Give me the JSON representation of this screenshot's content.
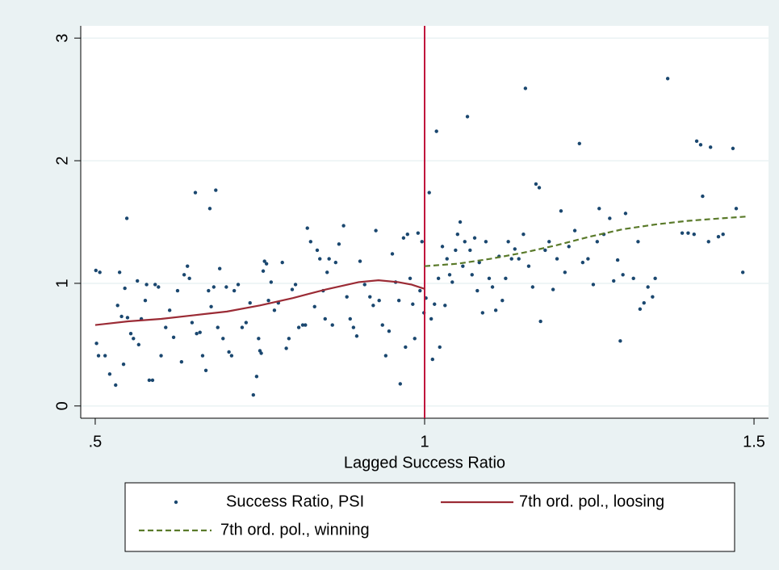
{
  "chart_data": {
    "type": "scatter",
    "xlabel": "Lagged Success Ratio",
    "xlim": [
      0.478,
      1.522
    ],
    "ylim": [
      -0.1,
      3.1
    ],
    "xticks": [
      {
        "value": 0.5,
        "label": ".5"
      },
      1,
      1.5
    ],
    "yticks": [
      0,
      1,
      2,
      3
    ],
    "grid": true,
    "legend": "bottom",
    "xline": {
      "value": 1,
      "color": "#c0143c"
    },
    "series": [
      {
        "name": "Success Ratio, PSI",
        "type": "scatter",
        "color": "#1a476f",
        "x": [
          0.501,
          0.507,
          0.502,
          0.505,
          0.515,
          0.522,
          0.531,
          0.534,
          0.537,
          0.54,
          0.543,
          0.548,
          0.545,
          0.549,
          0.554,
          0.558,
          0.564,
          0.566,
          0.57,
          0.576,
          0.578,
          0.582,
          0.587,
          0.591,
          0.596,
          0.6,
          0.607,
          0.613,
          0.619,
          0.625,
          0.631,
          0.635,
          0.64,
          0.643,
          0.647,
          0.652,
          0.654,
          0.659,
          0.663,
          0.668,
          0.672,
          0.674,
          0.676,
          0.68,
          0.683,
          0.686,
          0.689,
          0.694,
          0.699,
          0.703,
          0.707,
          0.711,
          0.717,
          0.723,
          0.729,
          0.735,
          0.74,
          0.745,
          0.748,
          0.75,
          0.752,
          0.755,
          0.757,
          0.76,
          0.763,
          0.767,
          0.772,
          0.778,
          0.784,
          0.79,
          0.794,
          0.799,
          0.804,
          0.809,
          0.815,
          0.819,
          0.822,
          0.827,
          0.833,
          0.837,
          0.841,
          0.846,
          0.849,
          0.852,
          0.855,
          0.86,
          0.865,
          0.87,
          0.877,
          0.882,
          0.887,
          0.892,
          0.897,
          0.902,
          0.909,
          0.917,
          0.922,
          0.926,
          0.931,
          0.936,
          0.941,
          0.946,
          0.951,
          0.956,
          0.961,
          0.963,
          0.968,
          0.971,
          0.974,
          0.978,
          0.982,
          0.985,
          0.99,
          0.993,
          0.996,
          0.999,
          1.002,
          1.007,
          1.01,
          1.012,
          1.015,
          1.018,
          1.021,
          1.023,
          1.027,
          1.031,
          1.034,
          1.038,
          1.042,
          1.047,
          1.05,
          1.054,
          1.058,
          1.061,
          1.065,
          1.069,
          1.072,
          1.076,
          1.08,
          1.083,
          1.088,
          1.093,
          1.098,
          1.103,
          1.108,
          1.113,
          1.118,
          1.123,
          1.127,
          1.132,
          1.137,
          1.143,
          1.15,
          1.153,
          1.158,
          1.164,
          1.169,
          1.174,
          1.176,
          1.183,
          1.189,
          1.195,
          1.201,
          1.207,
          1.213,
          1.219,
          1.228,
          1.235,
          1.24,
          1.248,
          1.256,
          1.262,
          1.265,
          1.272,
          1.281,
          1.287,
          1.293,
          1.297,
          1.301,
          1.305,
          1.317,
          1.324,
          1.327,
          1.333,
          1.339,
          1.346,
          1.35,
          1.369,
          1.391,
          1.4,
          1.409,
          1.413,
          1.419,
          1.422,
          1.431,
          1.434,
          1.446,
          1.453,
          1.468,
          1.473,
          1.483
        ],
        "values": [
          1.105,
          1.09,
          0.51,
          0.41,
          0.41,
          0.26,
          0.17,
          0.82,
          1.09,
          0.73,
          0.34,
          1.53,
          0.96,
          0.72,
          0.59,
          0.55,
          1.02,
          0.5,
          0.71,
          0.86,
          0.99,
          0.21,
          0.21,
          0.99,
          0.97,
          0.41,
          0.64,
          0.78,
          0.56,
          0.94,
          0.36,
          1.07,
          1.14,
          1.04,
          0.68,
          1.74,
          0.59,
          0.6,
          0.41,
          0.29,
          0.94,
          1.61,
          0.81,
          0.97,
          1.76,
          0.64,
          1.12,
          0.55,
          0.97,
          0.44,
          0.41,
          0.94,
          0.99,
          0.64,
          0.68,
          0.84,
          0.09,
          0.24,
          0.55,
          0.45,
          0.43,
          1.1,
          1.18,
          1.16,
          0.86,
          1.01,
          0.78,
          0.84,
          1.17,
          0.47,
          0.55,
          0.95,
          0.99,
          0.64,
          0.66,
          0.66,
          1.45,
          1.34,
          0.81,
          1.27,
          1.2,
          0.94,
          0.71,
          1.09,
          1.2,
          0.66,
          1.17,
          1.32,
          1.47,
          0.89,
          0.71,
          0.64,
          0.57,
          1.18,
          0.99,
          0.89,
          0.82,
          1.43,
          0.86,
          0.66,
          0.41,
          0.61,
          1.24,
          1.01,
          0.86,
          0.18,
          1.37,
          0.48,
          1.4,
          1.04,
          0.83,
          0.55,
          1.41,
          0.94,
          1.34,
          0.76,
          0.88,
          1.74,
          0.71,
          0.38,
          0.83,
          2.24,
          1.04,
          0.48,
          1.3,
          0.82,
          1.2,
          1.07,
          1.01,
          1.27,
          1.4,
          1.5,
          1.14,
          1.34,
          2.36,
          1.27,
          1.07,
          1.37,
          0.94,
          1.17,
          0.76,
          1.34,
          1.04,
          0.97,
          0.78,
          1.22,
          0.86,
          1.04,
          1.34,
          1.2,
          1.28,
          1.2,
          1.4,
          2.59,
          1.14,
          0.97,
          1.81,
          1.78,
          0.69,
          1.27,
          1.34,
          0.95,
          1.2,
          1.59,
          1.09,
          1.3,
          1.43,
          2.14,
          1.17,
          1.2,
          0.99,
          1.34,
          1.61,
          1.4,
          1.53,
          1.02,
          1.19,
          0.53,
          1.07,
          1.57,
          1.04,
          1.34,
          0.79,
          0.84,
          0.97,
          0.89,
          1.04,
          2.67,
          1.41,
          1.41,
          1.4,
          2.16,
          2.13,
          1.71,
          1.34,
          2.11,
          1.38,
          1.4,
          2.1,
          1.61,
          1.09
        ]
      },
      {
        "name": "7th ord. pol., loosing",
        "type": "line",
        "color": "#9b2b35",
        "x": [
          0.5,
          0.55,
          0.6,
          0.65,
          0.7,
          0.75,
          0.8,
          0.85,
          0.9,
          0.93,
          0.96,
          0.98,
          1.0
        ],
        "values": [
          0.66,
          0.69,
          0.71,
          0.74,
          0.77,
          0.82,
          0.88,
          0.95,
          1.01,
          1.025,
          1.01,
          0.99,
          0.955
        ]
      },
      {
        "name": "7th ord. pol., winning",
        "type": "line",
        "dashed": true,
        "color": "#5a7a2a",
        "x": [
          1.0,
          1.05,
          1.1,
          1.15,
          1.2,
          1.25,
          1.3,
          1.35,
          1.4,
          1.45,
          1.49
        ],
        "values": [
          1.14,
          1.16,
          1.2,
          1.25,
          1.31,
          1.38,
          1.44,
          1.48,
          1.51,
          1.53,
          1.545
        ]
      }
    ]
  }
}
